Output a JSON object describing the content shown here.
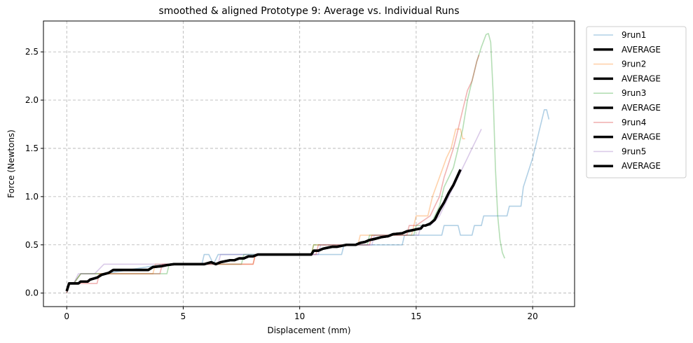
{
  "chart_data": {
    "type": "line",
    "title": "smoothed & aligned Prototype 9: Average vs. Individual Runs",
    "xlabel": "Displacement (mm)",
    "ylabel": "Force (Newtons)",
    "xlim": [
      -1.0,
      21.8
    ],
    "ylim": [
      -0.14,
      2.82
    ],
    "xticks": [
      0,
      5,
      10,
      15,
      20
    ],
    "xtick_labels": [
      "0",
      "5",
      "10",
      "15",
      "20"
    ],
    "yticks": [
      0.0,
      0.5,
      1.0,
      1.5,
      2.0,
      2.5
    ],
    "ytick_labels": [
      "0.0",
      "0.5",
      "1.0",
      "1.5",
      "2.0",
      "2.5"
    ],
    "grid": true,
    "legend_position": "outside-right-top",
    "legend": [
      "9run1",
      "AVERAGE",
      "9run2",
      "AVERAGE",
      "9run3",
      "AVERAGE",
      "9run4",
      "AVERAGE",
      "9run5",
      "AVERAGE"
    ],
    "series": [
      {
        "name": "9run1",
        "color": "#1f77b4",
        "x": [
          0,
          0.1,
          0.3,
          0.6,
          1.6,
          4.2,
          5.8,
          5.9,
          6.1,
          6.3,
          6.5,
          6.7,
          8.0,
          8.1,
          11.8,
          11.9,
          12.6,
          12.7,
          14.4,
          14.5,
          15.2,
          15.3,
          16.1,
          16.2,
          16.8,
          16.9,
          17.4,
          17.5,
          17.8,
          17.9,
          18.9,
          19.0,
          19.5,
          19.6,
          20.0,
          20.3,
          20.5,
          20.6,
          20.7
        ],
        "y": [
          0,
          0.1,
          0.1,
          0.2,
          0.2,
          0.3,
          0.3,
          0.4,
          0.4,
          0.3,
          0.4,
          0.4,
          0.4,
          0.4,
          0.4,
          0.5,
          0.5,
          0.5,
          0.5,
          0.6,
          0.6,
          0.6,
          0.6,
          0.7,
          0.7,
          0.6,
          0.6,
          0.7,
          0.7,
          0.8,
          0.8,
          0.9,
          0.9,
          1.1,
          1.4,
          1.7,
          1.9,
          1.9,
          1.8
        ]
      },
      {
        "name": "AVERAGE",
        "color": "#000000",
        "x": [
          0,
          0.1,
          0.2,
          0.5,
          0.6,
          0.9,
          1.0,
          1.3,
          1.5,
          1.8,
          2.0,
          3.5,
          3.7,
          4.1,
          4.3,
          4.6,
          5.9,
          6.2,
          6.4,
          6.6,
          6.8,
          7.0,
          7.2,
          7.4,
          7.6,
          7.8,
          8.0,
          8.2,
          10.5,
          10.6,
          10.8,
          11.0,
          11.2,
          11.4,
          11.6,
          11.8,
          12.0,
          12.4,
          12.6,
          12.8,
          13.0,
          13.2,
          13.5,
          13.8,
          14.0,
          14.4,
          14.6,
          14.8,
          15.0,
          15.2,
          15.3,
          15.4,
          15.6,
          15.8,
          16.0,
          16.2,
          16.4,
          16.6,
          16.9
        ],
        "y": [
          0.02,
          0.1,
          0.1,
          0.1,
          0.12,
          0.12,
          0.14,
          0.16,
          0.19,
          0.21,
          0.24,
          0.24,
          0.27,
          0.28,
          0.29,
          0.3,
          0.3,
          0.32,
          0.3,
          0.32,
          0.33,
          0.34,
          0.34,
          0.36,
          0.36,
          0.38,
          0.38,
          0.4,
          0.4,
          0.44,
          0.44,
          0.46,
          0.47,
          0.48,
          0.48,
          0.49,
          0.5,
          0.5,
          0.52,
          0.53,
          0.55,
          0.56,
          0.58,
          0.59,
          0.61,
          0.62,
          0.64,
          0.65,
          0.66,
          0.67,
          0.7,
          0.7,
          0.72,
          0.76,
          0.86,
          0.94,
          1.04,
          1.12,
          1.28
        ]
      },
      {
        "name": "9run2",
        "color": "#ff7f0e",
        "x": [
          0,
          0.1,
          0.3,
          0.6,
          1.6,
          3.7,
          3.8,
          4.3,
          4.4,
          6.0,
          6.1,
          8.0,
          8.1,
          10.5,
          10.6,
          12.5,
          12.6,
          14.8,
          14.9,
          15.0,
          15.5,
          15.7,
          16.0,
          16.3,
          16.5,
          16.7,
          16.9,
          17.0,
          17.1
        ],
        "y": [
          0,
          0.1,
          0.1,
          0.2,
          0.2,
          0.2,
          0.3,
          0.3,
          0.3,
          0.3,
          0.3,
          0.3,
          0.4,
          0.4,
          0.5,
          0.5,
          0.6,
          0.6,
          0.7,
          0.8,
          0.8,
          1.0,
          1.2,
          1.4,
          1.5,
          1.7,
          1.7,
          1.6,
          1.6
        ]
      },
      {
        "name": "9run3",
        "color": "#2ca02c",
        "x": [
          0,
          0.1,
          0.3,
          0.6,
          1.7,
          4.3,
          4.4,
          7.5,
          7.6,
          10.5,
          10.6,
          12.9,
          13.0,
          14.9,
          15.0,
          15.6,
          15.8,
          16.0,
          16.2,
          16.4,
          16.6,
          16.8,
          17.0,
          17.2,
          17.4,
          17.6,
          17.8,
          18.0,
          18.1,
          18.2,
          18.3,
          18.4,
          18.5,
          18.6,
          18.7,
          18.8
        ],
        "y": [
          0,
          0.1,
          0.1,
          0.2,
          0.2,
          0.2,
          0.3,
          0.3,
          0.4,
          0.4,
          0.5,
          0.5,
          0.6,
          0.6,
          0.7,
          0.7,
          0.8,
          0.9,
          1.1,
          1.2,
          1.3,
          1.5,
          1.7,
          2.0,
          2.2,
          2.4,
          2.55,
          2.68,
          2.69,
          2.6,
          2.1,
          1.3,
          0.8,
          0.55,
          0.42,
          0.36
        ]
      },
      {
        "name": "9run4",
        "color": "#d62728",
        "x": [
          0,
          0.1,
          0.3,
          1.3,
          1.4,
          4.0,
          4.1,
          4.3,
          4.4,
          5.9,
          6.0,
          8.0,
          8.1,
          10.7,
          10.8,
          13.0,
          13.1,
          14.6,
          14.7,
          15.0,
          15.6,
          15.8,
          16.0,
          16.2,
          16.4,
          16.6,
          16.8,
          17.0,
          17.2,
          17.4,
          17.6,
          17.7
        ],
        "y": [
          0,
          0.1,
          0.1,
          0.1,
          0.2,
          0.2,
          0.3,
          0.3,
          0.3,
          0.3,
          0.3,
          0.3,
          0.4,
          0.4,
          0.5,
          0.5,
          0.6,
          0.6,
          0.7,
          0.7,
          0.8,
          0.9,
          1.0,
          1.2,
          1.35,
          1.5,
          1.7,
          1.9,
          2.1,
          2.2,
          2.4,
          2.47
        ]
      },
      {
        "name": "9run5",
        "color": "#9467bd",
        "x": [
          0,
          0.1,
          0.3,
          0.5,
          1.0,
          1.2,
          1.6,
          4.1,
          4.2,
          6.5,
          6.6,
          7.7,
          7.8,
          10.8,
          10.9,
          13.1,
          13.2,
          14.6,
          14.7,
          15.1,
          15.2,
          15.5,
          15.6,
          16.0,
          16.2,
          16.4,
          16.6,
          16.8,
          17.0,
          17.2,
          17.4,
          17.6,
          17.8
        ],
        "y": [
          0,
          0.1,
          0.1,
          0.2,
          0.2,
          0.2,
          0.3,
          0.3,
          0.3,
          0.3,
          0.4,
          0.4,
          0.4,
          0.4,
          0.5,
          0.5,
          0.6,
          0.6,
          0.6,
          0.6,
          0.7,
          0.7,
          0.7,
          0.8,
          0.9,
          1.0,
          1.1,
          1.2,
          1.3,
          1.4,
          1.5,
          1.6,
          1.7
        ]
      },
      {
        "name": "AVERAGE",
        "color": "#000000",
        "x": [
          0,
          0.1,
          0.2,
          0.5,
          0.6,
          0.9,
          1.0,
          1.3,
          1.5,
          1.8,
          2.0,
          3.5,
          3.7,
          4.1,
          4.3,
          4.6,
          5.9,
          6.2,
          6.4,
          6.6,
          6.8,
          7.0,
          7.2,
          7.4,
          7.6,
          7.8,
          8.0,
          8.2,
          10.5,
          10.6,
          10.8,
          11.0,
          11.2,
          11.4,
          11.6,
          11.8,
          12.0,
          12.4,
          12.6,
          12.8,
          13.0,
          13.2,
          13.5,
          13.8,
          14.0,
          14.4,
          14.6,
          14.8,
          15.0,
          15.2,
          15.3,
          15.4,
          15.6,
          15.8,
          16.0,
          16.2,
          16.4,
          16.6,
          16.9
        ],
        "y": [
          0.02,
          0.1,
          0.1,
          0.1,
          0.12,
          0.12,
          0.14,
          0.16,
          0.19,
          0.21,
          0.24,
          0.24,
          0.27,
          0.28,
          0.29,
          0.3,
          0.3,
          0.32,
          0.3,
          0.32,
          0.33,
          0.34,
          0.34,
          0.36,
          0.36,
          0.38,
          0.38,
          0.4,
          0.4,
          0.44,
          0.44,
          0.46,
          0.47,
          0.48,
          0.48,
          0.49,
          0.5,
          0.5,
          0.52,
          0.53,
          0.55,
          0.56,
          0.58,
          0.59,
          0.61,
          0.62,
          0.64,
          0.65,
          0.66,
          0.67,
          0.7,
          0.7,
          0.72,
          0.76,
          0.86,
          0.94,
          1.04,
          1.12,
          1.28
        ]
      }
    ]
  }
}
